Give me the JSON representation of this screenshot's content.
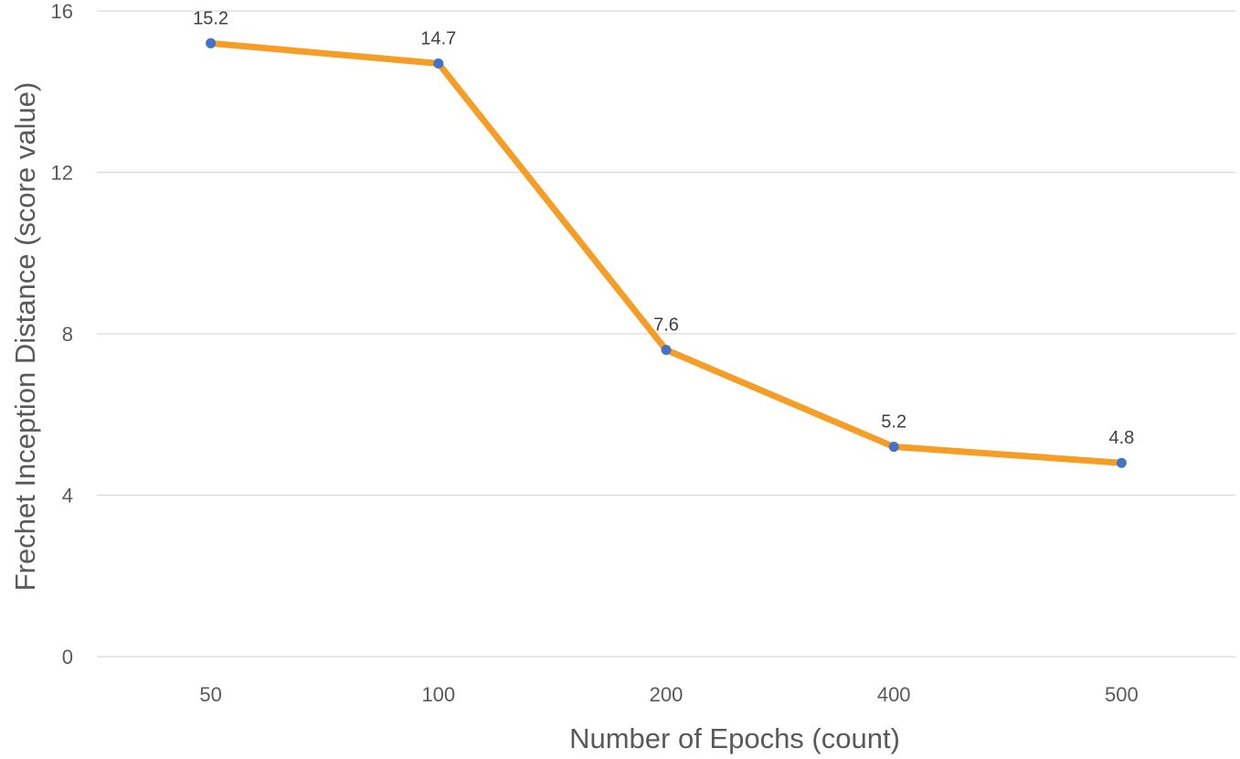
{
  "chart_data": {
    "type": "line",
    "categories": [
      "50",
      "100",
      "200",
      "400",
      "500"
    ],
    "series": [
      {
        "values": [
          15.2,
          14.7,
          7.6,
          5.2,
          4.8
        ]
      }
    ],
    "data_labels": [
      "15.2",
      "14.7",
      "7.6",
      "5.2",
      "4.8"
    ],
    "title": "",
    "xlabel": "Number of Epochs (count)",
    "ylabel": "Frechet Inception Distance (score value)",
    "ylim": [
      0,
      16
    ],
    "yticks": [
      "0",
      "4",
      "8",
      "12",
      "16"
    ],
    "grid": "horizontal",
    "legend": "none",
    "colors": {
      "line": "#f59d24",
      "marker": "#4472c4",
      "grid": "#d9d9d9",
      "text": "#595959"
    }
  }
}
